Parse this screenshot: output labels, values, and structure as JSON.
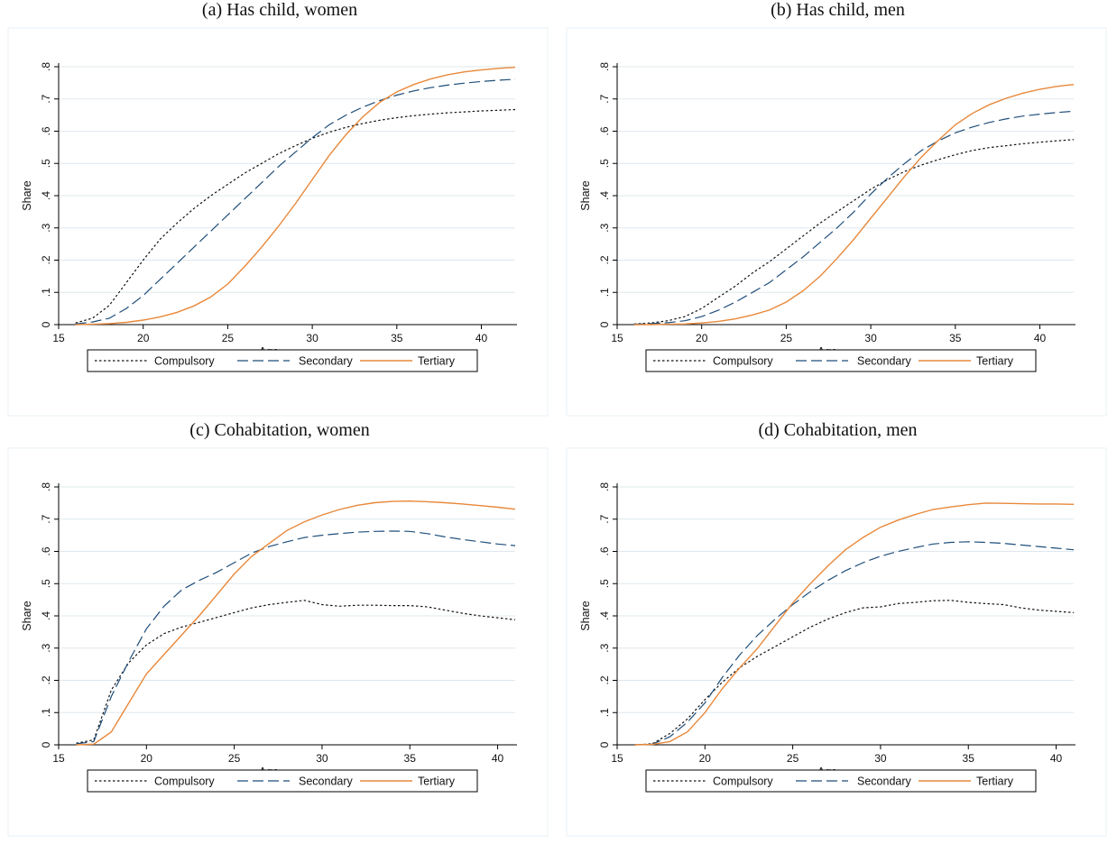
{
  "chart_data": [
    {
      "type": "line",
      "title": "(a) Has child, women",
      "xlabel": "Age",
      "ylabel": "Share",
      "xlim": [
        15,
        42
      ],
      "ylim": [
        0,
        0.8
      ],
      "xticks": [
        "15",
        "20",
        "25",
        "30",
        "35",
        "40"
      ],
      "yticks": [
        "0",
        ".1",
        ".2",
        ".3",
        ".4",
        ".5",
        ".6",
        ".7",
        ".8"
      ],
      "grid": true,
      "legend": "bottom",
      "x": [
        16,
        17,
        18,
        19,
        20,
        21,
        22,
        23,
        24,
        25,
        26,
        27,
        28,
        29,
        30,
        31,
        32,
        33,
        34,
        35,
        36,
        37,
        38,
        39,
        40,
        41,
        42
      ],
      "series": [
        {
          "name": "Compulsory",
          "style": "dotted",
          "color": "#111111",
          "values": [
            0.005,
            0.02,
            0.06,
            0.13,
            0.2,
            0.265,
            0.315,
            0.36,
            0.4,
            0.435,
            0.47,
            0.5,
            0.53,
            0.555,
            0.578,
            0.597,
            0.612,
            0.624,
            0.634,
            0.642,
            0.648,
            0.653,
            0.657,
            0.66,
            0.663,
            0.665,
            0.667
          ]
        },
        {
          "name": "Secondary",
          "style": "dashed",
          "color": "#1f4e79",
          "values": [
            0.002,
            0.008,
            0.02,
            0.05,
            0.09,
            0.14,
            0.19,
            0.24,
            0.29,
            0.34,
            0.39,
            0.44,
            0.49,
            0.535,
            0.58,
            0.62,
            0.65,
            0.675,
            0.695,
            0.712,
            0.725,
            0.735,
            0.743,
            0.749,
            0.754,
            0.758,
            0.761
          ]
        },
        {
          "name": "Tertiary",
          "style": "solid",
          "color": "#e8883a",
          "values": [
            0.0,
            0.001,
            0.003,
            0.007,
            0.014,
            0.024,
            0.038,
            0.058,
            0.086,
            0.126,
            0.18,
            0.24,
            0.305,
            0.375,
            0.45,
            0.525,
            0.59,
            0.645,
            0.69,
            0.722,
            0.745,
            0.762,
            0.775,
            0.784,
            0.79,
            0.795,
            0.798
          ]
        }
      ]
    },
    {
      "type": "line",
      "title": "(b) Has child, men",
      "xlabel": "Age",
      "ylabel": "Share",
      "xlim": [
        15,
        42
      ],
      "ylim": [
        0,
        0.8
      ],
      "xticks": [
        "15",
        "20",
        "25",
        "30",
        "35",
        "40"
      ],
      "yticks": [
        "0",
        ".1",
        ".2",
        ".3",
        ".4",
        ".5",
        ".6",
        ".7",
        ".8"
      ],
      "grid": true,
      "legend": "bottom",
      "x": [
        16,
        17,
        18,
        19,
        20,
        21,
        22,
        23,
        24,
        25,
        26,
        27,
        28,
        29,
        30,
        31,
        32,
        33,
        34,
        35,
        36,
        37,
        38,
        39,
        40,
        41,
        42
      ],
      "series": [
        {
          "name": "Compulsory",
          "style": "dotted",
          "color": "#111111",
          "values": [
            0.002,
            0.005,
            0.012,
            0.025,
            0.05,
            0.085,
            0.12,
            0.16,
            0.195,
            0.235,
            0.275,
            0.315,
            0.35,
            0.385,
            0.42,
            0.45,
            0.475,
            0.495,
            0.512,
            0.527,
            0.54,
            0.549,
            0.555,
            0.561,
            0.566,
            0.57,
            0.574
          ]
        },
        {
          "name": "Secondary",
          "style": "dashed",
          "color": "#1f4e79",
          "values": [
            0.001,
            0.003,
            0.006,
            0.012,
            0.025,
            0.045,
            0.07,
            0.1,
            0.13,
            0.17,
            0.21,
            0.255,
            0.3,
            0.35,
            0.405,
            0.455,
            0.5,
            0.54,
            0.57,
            0.595,
            0.613,
            0.627,
            0.638,
            0.647,
            0.653,
            0.658,
            0.662
          ]
        },
        {
          "name": "Tertiary",
          "style": "solid",
          "color": "#e8883a",
          "values": [
            0.0,
            0.0,
            0.001,
            0.002,
            0.005,
            0.01,
            0.018,
            0.03,
            0.045,
            0.07,
            0.105,
            0.15,
            0.205,
            0.265,
            0.33,
            0.395,
            0.46,
            0.52,
            0.572,
            0.62,
            0.655,
            0.682,
            0.702,
            0.718,
            0.73,
            0.739,
            0.745
          ]
        }
      ]
    },
    {
      "type": "line",
      "title": "(c) Cohabitation, women",
      "xlabel": "Age",
      "ylabel": "Share",
      "xlim": [
        15,
        41
      ],
      "ylim": [
        0,
        0.8
      ],
      "xticks": [
        "15",
        "20",
        "25",
        "30",
        "35",
        "40"
      ],
      "yticks": [
        "0",
        ".1",
        ".2",
        ".3",
        ".4",
        ".5",
        ".6",
        ".7",
        ".8"
      ],
      "grid": true,
      "legend": "bottom",
      "x": [
        16,
        17,
        18,
        19,
        20,
        21,
        22,
        23,
        24,
        25,
        26,
        27,
        28,
        29,
        30,
        31,
        32,
        33,
        34,
        35,
        36,
        37,
        38,
        39,
        40,
        41
      ],
      "series": [
        {
          "name": "Compulsory",
          "style": "dotted",
          "color": "#111111",
          "values": [
            0.005,
            0.015,
            0.17,
            0.255,
            0.31,
            0.345,
            0.365,
            0.38,
            0.395,
            0.41,
            0.425,
            0.435,
            0.442,
            0.448,
            0.435,
            0.43,
            0.433,
            0.433,
            0.432,
            0.432,
            0.428,
            0.418,
            0.408,
            0.4,
            0.394,
            0.388
          ]
        },
        {
          "name": "Secondary",
          "style": "dashed",
          "color": "#1f4e79",
          "values": [
            0.003,
            0.01,
            0.15,
            0.26,
            0.36,
            0.43,
            0.48,
            0.51,
            0.535,
            0.565,
            0.595,
            0.615,
            0.63,
            0.643,
            0.65,
            0.655,
            0.66,
            0.662,
            0.663,
            0.662,
            0.655,
            0.645,
            0.637,
            0.63,
            0.623,
            0.618
          ]
        },
        {
          "name": "Tertiary",
          "style": "solid",
          "color": "#e8883a",
          "values": [
            0.0,
            0.002,
            0.04,
            0.13,
            0.22,
            0.28,
            0.34,
            0.4,
            0.465,
            0.53,
            0.585,
            0.625,
            0.665,
            0.692,
            0.713,
            0.73,
            0.743,
            0.751,
            0.755,
            0.756,
            0.754,
            0.751,
            0.747,
            0.742,
            0.737,
            0.731
          ]
        }
      ]
    },
    {
      "type": "line",
      "title": "(d) Cohabitation, men",
      "xlabel": "Age",
      "ylabel": "Share",
      "xlim": [
        15,
        41
      ],
      "ylim": [
        0,
        0.8
      ],
      "xticks": [
        "15",
        "20",
        "25",
        "30",
        "35",
        "40"
      ],
      "yticks": [
        "0",
        ".1",
        ".2",
        ".3",
        ".4",
        ".5",
        ".6",
        ".7",
        ".8"
      ],
      "grid": true,
      "legend": "bottom",
      "x": [
        16,
        17,
        18,
        19,
        20,
        21,
        22,
        23,
        24,
        25,
        26,
        27,
        28,
        29,
        30,
        31,
        32,
        33,
        34,
        35,
        36,
        37,
        38,
        39,
        40,
        41
      ],
      "series": [
        {
          "name": "Compulsory",
          "style": "dotted",
          "color": "#111111",
          "values": [
            0.0,
            0.003,
            0.035,
            0.08,
            0.14,
            0.195,
            0.24,
            0.275,
            0.305,
            0.335,
            0.365,
            0.39,
            0.41,
            0.425,
            0.428,
            0.438,
            0.442,
            0.447,
            0.448,
            0.442,
            0.438,
            0.435,
            0.425,
            0.418,
            0.414,
            0.41
          ]
        },
        {
          "name": "Secondary",
          "style": "dashed",
          "color": "#1f4e79",
          "values": [
            0.0,
            0.002,
            0.025,
            0.07,
            0.13,
            0.21,
            0.28,
            0.34,
            0.39,
            0.435,
            0.475,
            0.51,
            0.54,
            0.565,
            0.585,
            0.6,
            0.612,
            0.623,
            0.628,
            0.63,
            0.628,
            0.625,
            0.62,
            0.615,
            0.61,
            0.605
          ]
        },
        {
          "name": "Tertiary",
          "style": "solid",
          "color": "#e8883a",
          "values": [
            0.0,
            0.001,
            0.01,
            0.04,
            0.1,
            0.175,
            0.24,
            0.3,
            0.37,
            0.44,
            0.5,
            0.555,
            0.605,
            0.643,
            0.675,
            0.697,
            0.715,
            0.73,
            0.738,
            0.745,
            0.75,
            0.749,
            0.748,
            0.747,
            0.747,
            0.746
          ]
        }
      ]
    }
  ]
}
